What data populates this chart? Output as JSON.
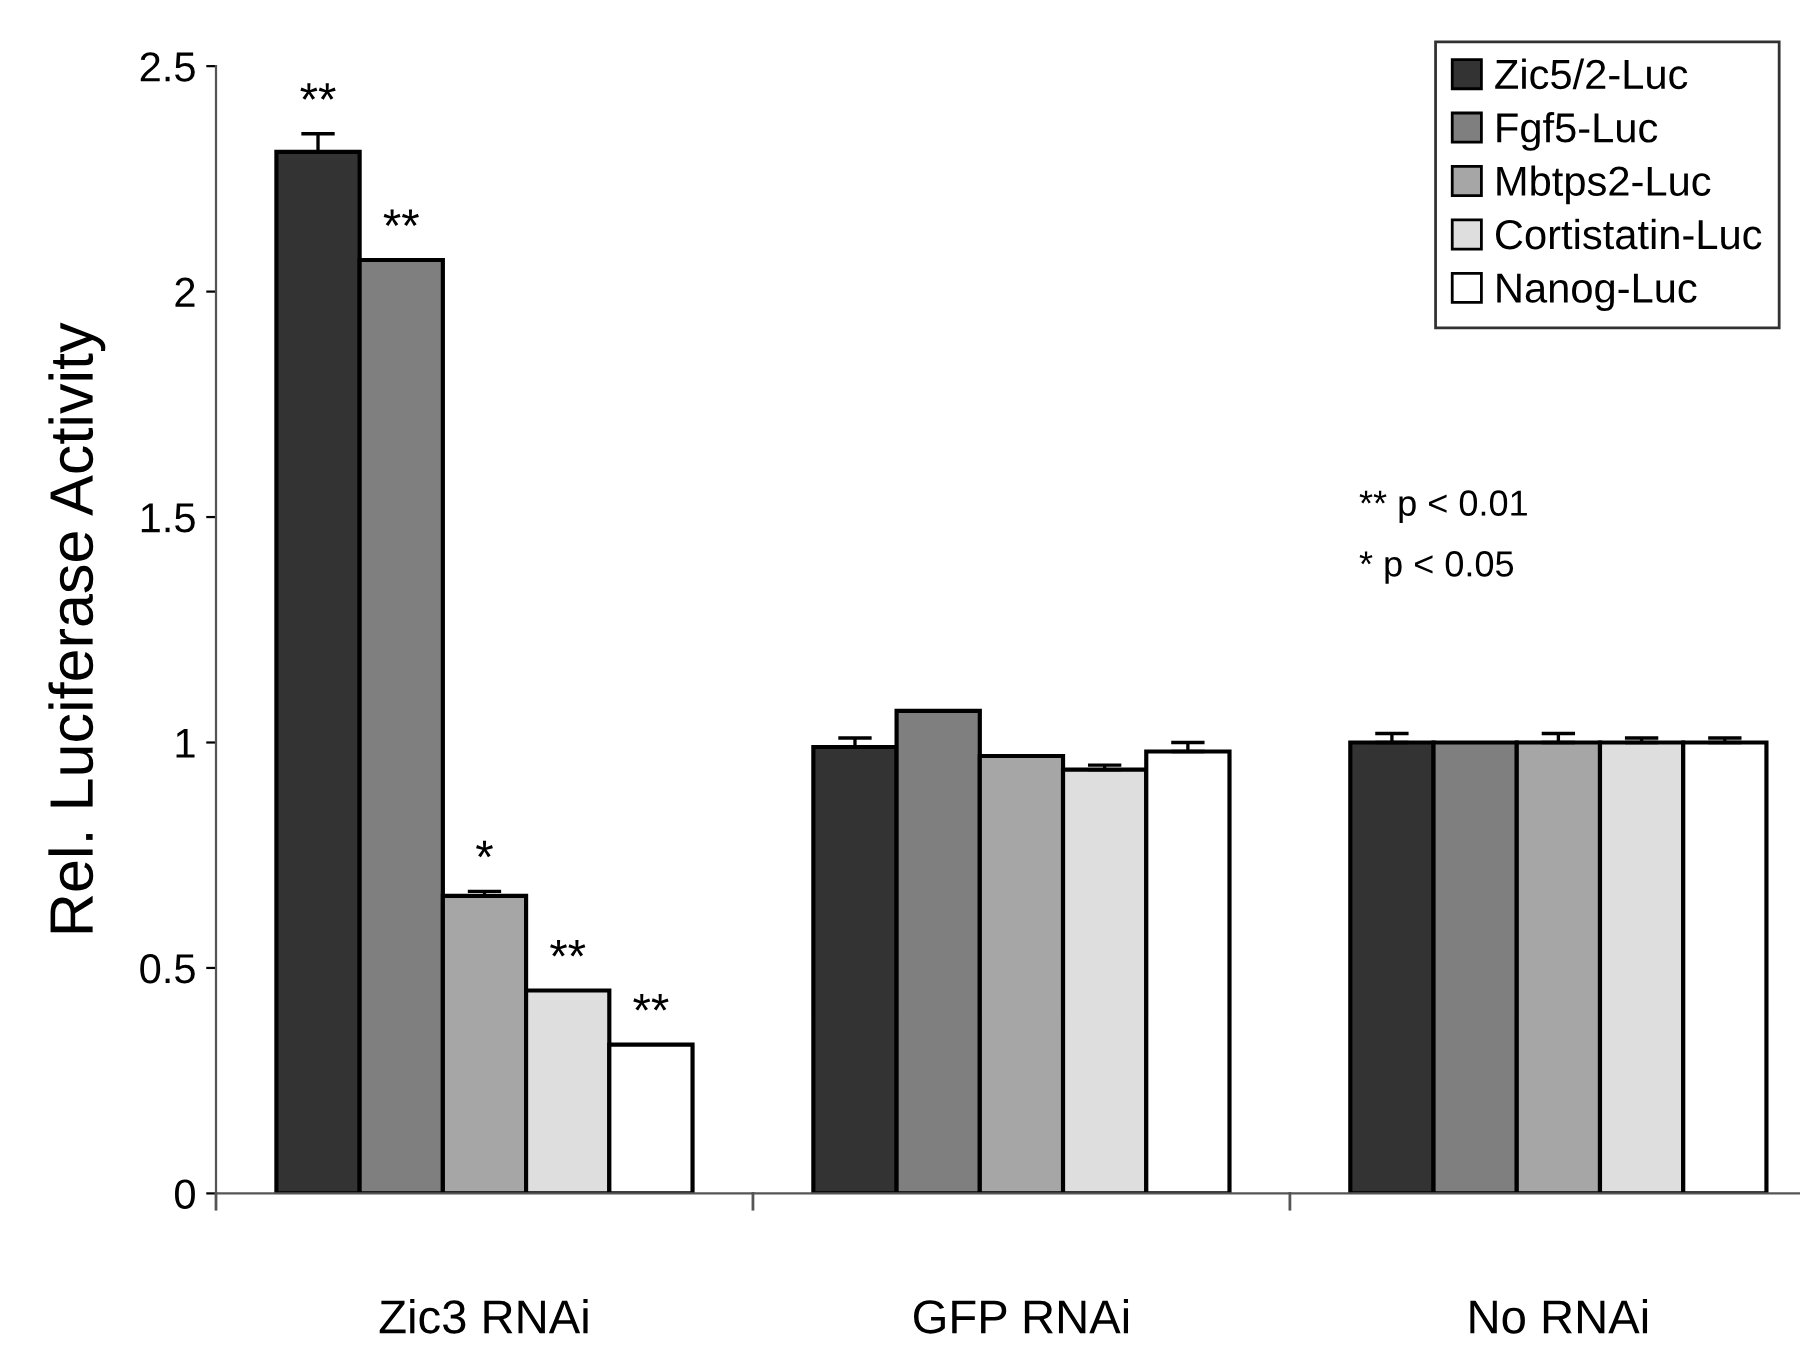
{
  "chart_data": {
    "type": "bar",
    "ylabel": "Rel. Luciferase Activity",
    "categories": [
      "Zic3 RNAi",
      "GFP RNAi",
      "No RNAi"
    ],
    "series": [
      {
        "name": "Zic5/2-Luc",
        "color": "#333333",
        "values": [
          2.31,
          0.99,
          1.0
        ],
        "errors": [
          [
            2.31,
            2.35
          ],
          [
            0.99,
            1.01
          ],
          [
            1.0,
            1.02
          ]
        ],
        "value_labels": [
          "**",
          null,
          null
        ]
      },
      {
        "name": "Fgf5-Luc",
        "color": "#7f7f7f",
        "values": [
          2.07,
          1.07,
          1.0
        ],
        "value_labels": [
          "**",
          null,
          null
        ]
      },
      {
        "name": "Mbtps2-Luc",
        "color": "#a6a6a6",
        "values": [
          0.66,
          0.97,
          1.0
        ],
        "errors": [
          [
            0.66,
            0.67
          ],
          null,
          [
            1.0,
            1.02
          ]
        ],
        "value_labels": [
          "*",
          null,
          null
        ]
      },
      {
        "name": "Cortistatin-Luc",
        "color": "#dedede",
        "values": [
          0.45,
          0.94,
          1.0
        ],
        "errors": [
          null,
          [
            0.94,
            0.95
          ],
          [
            1.0,
            1.01
          ]
        ],
        "value_labels": [
          "**",
          null,
          null
        ]
      },
      {
        "name": "Nanog-Luc",
        "color": "#ffffff",
        "values": [
          0.33,
          0.98,
          1.0
        ],
        "errors": [
          null,
          [
            0.98,
            1.0
          ],
          [
            1.0,
            1.01
          ]
        ],
        "value_labels": [
          "**",
          null,
          null
        ]
      }
    ],
    "ylim": [
      0,
      2.5
    ],
    "yticks": [
      0,
      0.5,
      1,
      1.5,
      2,
      2.5
    ],
    "legend": "top right",
    "annotations": [
      "** p < 0.01",
      "* p < 0.05"
    ]
  }
}
